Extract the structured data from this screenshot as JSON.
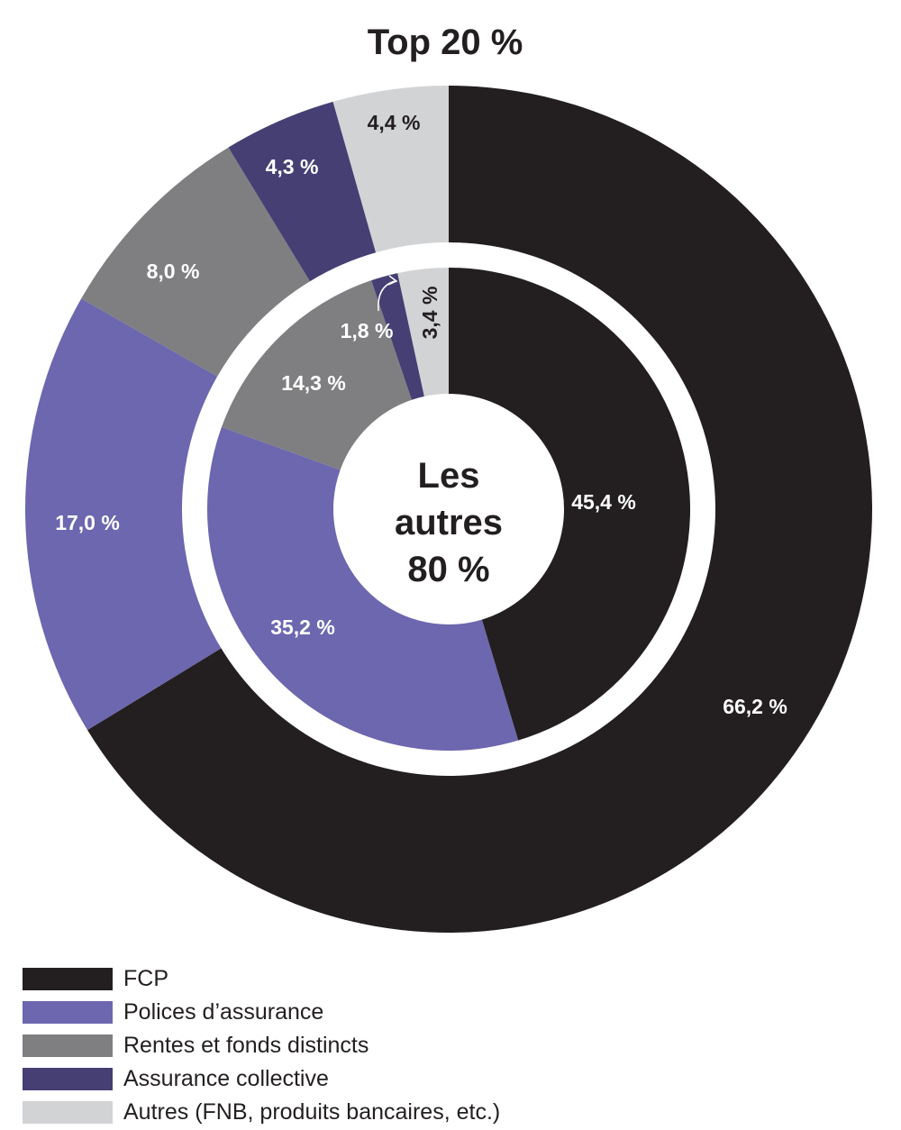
{
  "chart_data": {
    "type": "pie",
    "title": "Top 20 %",
    "center_label": [
      "Les",
      "autres",
      "80 %"
    ],
    "categories": [
      "FCP",
      "Polices d’assurance",
      "Rentes et fonds distincts",
      "Assurance collective",
      "Autres (FNB, produits bancaires, etc.)"
    ],
    "colors": [
      "#231f20",
      "#6c67ae",
      "#7f7f81",
      "#453f74",
      "#d2d3d5"
    ],
    "label_colors": [
      "#ffffff",
      "#ffffff",
      "#ffffff",
      "#ffffff",
      "#231f20"
    ],
    "series": [
      {
        "name": "Top 20 %",
        "ring": "outer",
        "values": [
          66.2,
          17.0,
          8.0,
          4.3,
          4.4
        ],
        "labels": [
          "66,2 %",
          "17,0 %",
          "8,0 %",
          "4,3 %",
          "4,4 %"
        ]
      },
      {
        "name": "Les autres 80 %",
        "ring": "inner",
        "values": [
          45.4,
          35.2,
          14.3,
          1.8,
          3.4
        ],
        "labels": [
          "45,4 %",
          "35,2 %",
          "14,3 %",
          "1,8 %",
          "3,4 %"
        ]
      }
    ],
    "legend_position": "bottom-left"
  }
}
